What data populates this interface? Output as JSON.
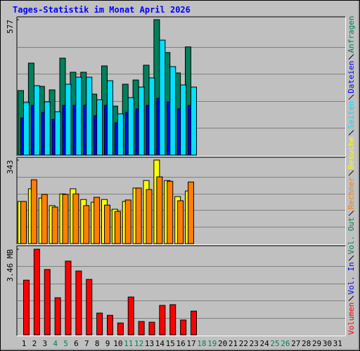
{
  "title": "Tages-Statistik im Monat April 2026",
  "categories": [
    "1",
    "2",
    "3",
    "4",
    "5",
    "6",
    "7",
    "8",
    "9",
    "10",
    "11",
    "12",
    "13",
    "14",
    "15",
    "16",
    "17",
    "18",
    "19",
    "20",
    "21",
    "22",
    "23",
    "24",
    "25",
    "26",
    "27",
    "28",
    "29",
    "30",
    "31"
  ],
  "category_colors": [
    "#000000",
    "#000000",
    "#000000",
    "#00805c",
    "#00805c",
    "#000000",
    "#000000",
    "#000000",
    "#000000",
    "#000000",
    "#00805c",
    "#00805c",
    "#000000",
    "#000000",
    "#000000",
    "#000000",
    "#000000",
    "#00805c",
    "#00805c",
    "#000000",
    "#000000",
    "#000000",
    "#000000",
    "#000000",
    "#00805c",
    "#00805c",
    "#000000",
    "#000000",
    "#000000",
    "#000000",
    "#000000"
  ],
  "chart_data": [
    {
      "type": "bar",
      "ylim": [
        0,
        577
      ],
      "yticks": [
        577
      ],
      "grid": true,
      "series": [
        {
          "name": "Anfragen",
          "color": "#00805c",
          "values": [
            275,
            392,
            293,
            278,
            413,
            353,
            353,
            260,
            380,
            209,
            302,
            320,
            383,
            577,
            437,
            350,
            461,
            null,
            null,
            null,
            null,
            null,
            null,
            null,
            null,
            null,
            null,
            null,
            null,
            null,
            null
          ]
        },
        {
          "name": "Dateien",
          "color": "#0000ff",
          "values": [
            158,
            212,
            182,
            152,
            212,
            212,
            212,
            168,
            212,
            138,
            182,
            197,
            212,
            242,
            227,
            197,
            212,
            null,
            null,
            null,
            null,
            null,
            null,
            null,
            null,
            null,
            null,
            null,
            null,
            null,
            null
          ]
        },
        {
          "name": "Seiten",
          "color": "#00e0ff",
          "values": [
            224,
            296,
            227,
            185,
            302,
            332,
            332,
            236,
            317,
            176,
            245,
            290,
            329,
            490,
            377,
            299,
            290,
            null,
            null,
            null,
            null,
            null,
            null,
            null,
            null,
            null,
            null,
            null,
            null,
            null,
            null
          ]
        }
      ]
    },
    {
      "type": "bar",
      "ylim": [
        0,
        343
      ],
      "yticks": [
        343
      ],
      "grid": true,
      "series": [
        {
          "name": "Besuche",
          "color": "#ffff00",
          "values": [
            173,
            225,
            187,
            156,
            204,
            225,
            181,
            170,
            181,
            141,
            173,
            228,
            259,
            343,
            259,
            193,
            216,
            null,
            null,
            null,
            null,
            null,
            null,
            null,
            null,
            null,
            null,
            null,
            null,
            null,
            null
          ]
        },
        {
          "name": "Rechner",
          "color": "#ff8000",
          "values": [
            173,
            262,
            202,
            150,
            202,
            204,
            156,
            190,
            158,
            132,
            179,
            228,
            222,
            274,
            256,
            176,
            253,
            null,
            null,
            null,
            null,
            null,
            null,
            null,
            null,
            null,
            null,
            null,
            null,
            null,
            null
          ]
        }
      ]
    },
    {
      "type": "bar",
      "ylim": [
        0,
        3.46
      ],
      "yticks": [
        {
          "value": 3.46,
          "label": "3.46 MB"
        }
      ],
      "grid": true,
      "series": [
        {
          "name": "Vol. Out",
          "color": "#00805c",
          "values": [
            null,
            null,
            null,
            null,
            null,
            null,
            null,
            null,
            null,
            null,
            null,
            null,
            null,
            null,
            null,
            null,
            null,
            null,
            null,
            null,
            null,
            null,
            null,
            null,
            null,
            null,
            null,
            null,
            null,
            null,
            null
          ]
        },
        {
          "name": "Vol. In",
          "color": "#0000ff",
          "values": [
            null,
            null,
            null,
            null,
            null,
            null,
            null,
            null,
            null,
            null,
            null,
            null,
            null,
            null,
            null,
            null,
            null,
            null,
            null,
            null,
            null,
            null,
            null,
            null,
            null,
            null,
            null,
            null,
            null,
            null,
            null
          ]
        },
        {
          "name": "Volumen",
          "color": "#ff0000",
          "values": [
            2.21,
            3.46,
            2.64,
            1.5,
            2.98,
            2.58,
            2.24,
            0.88,
            0.79,
            0.48,
            1.53,
            0.54,
            0.51,
            1.19,
            1.22,
            0.6,
            0.96,
            null,
            null,
            null,
            null,
            null,
            null,
            null,
            null,
            null,
            null,
            null,
            null,
            null,
            null
          ]
        }
      ]
    }
  ]
}
